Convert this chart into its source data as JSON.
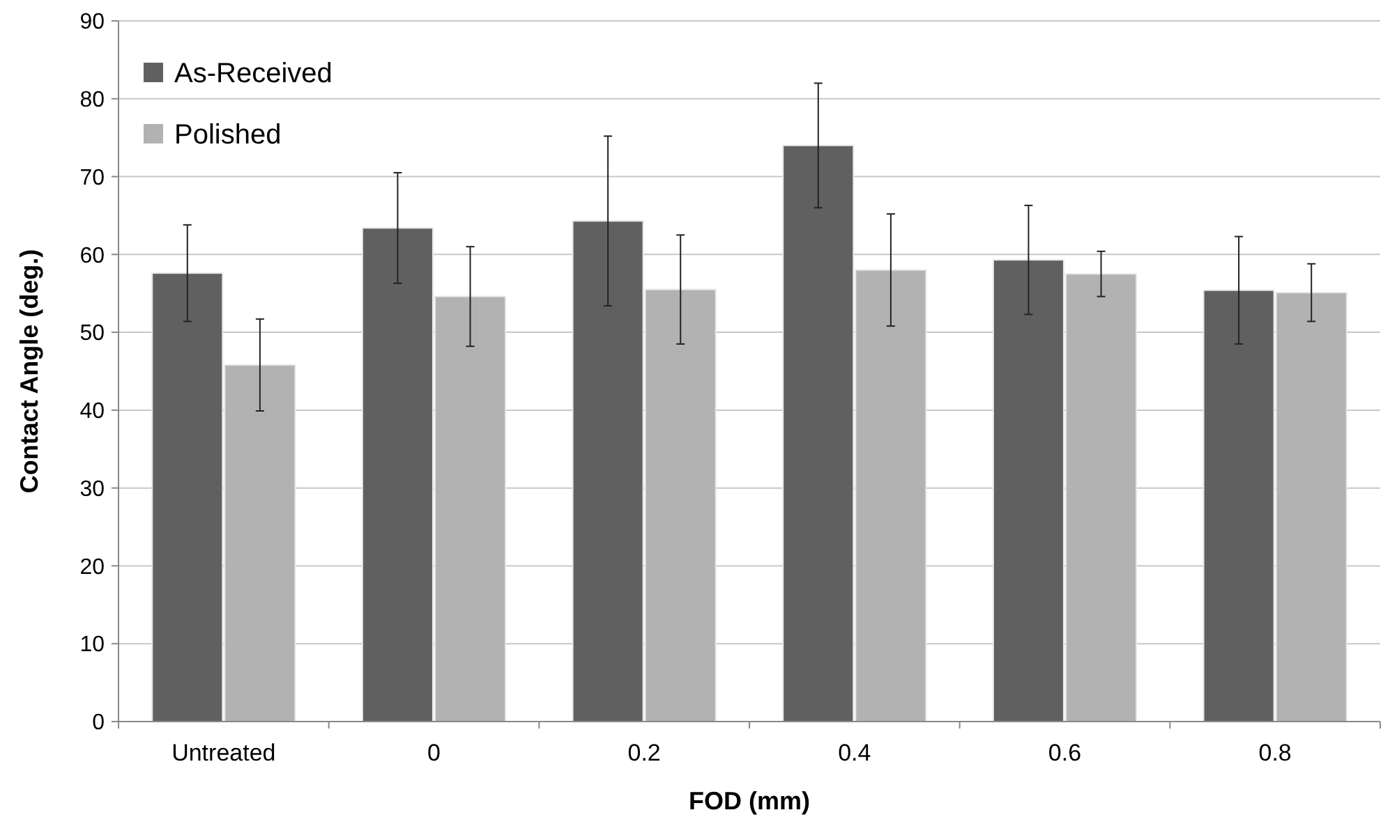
{
  "chart_data": {
    "type": "bar",
    "xlabel": "FOD (mm)",
    "ylabel": "Contact Angle (deg.)",
    "categories": [
      "Untreated",
      "0",
      "0.2",
      "0.4",
      "0.6",
      "0.8"
    ],
    "series": [
      {
        "name": "As-Received",
        "color": "#606060",
        "values": [
          57.6,
          63.4,
          64.3,
          74.0,
          59.3,
          55.4
        ],
        "errors": [
          6.2,
          7.1,
          10.9,
          8.0,
          7.0,
          6.9
        ]
      },
      {
        "name": "Polished",
        "color": "#b2b2b2",
        "values": [
          45.8,
          54.6,
          55.5,
          58.0,
          57.5,
          55.1
        ],
        "errors": [
          5.9,
          6.4,
          7.0,
          7.2,
          2.9,
          3.7
        ]
      }
    ],
    "ylim": [
      0,
      90
    ],
    "yticks": [
      0,
      10,
      20,
      30,
      40,
      50,
      60,
      70,
      80,
      90
    ],
    "grid": "y",
    "legend": "top left"
  }
}
